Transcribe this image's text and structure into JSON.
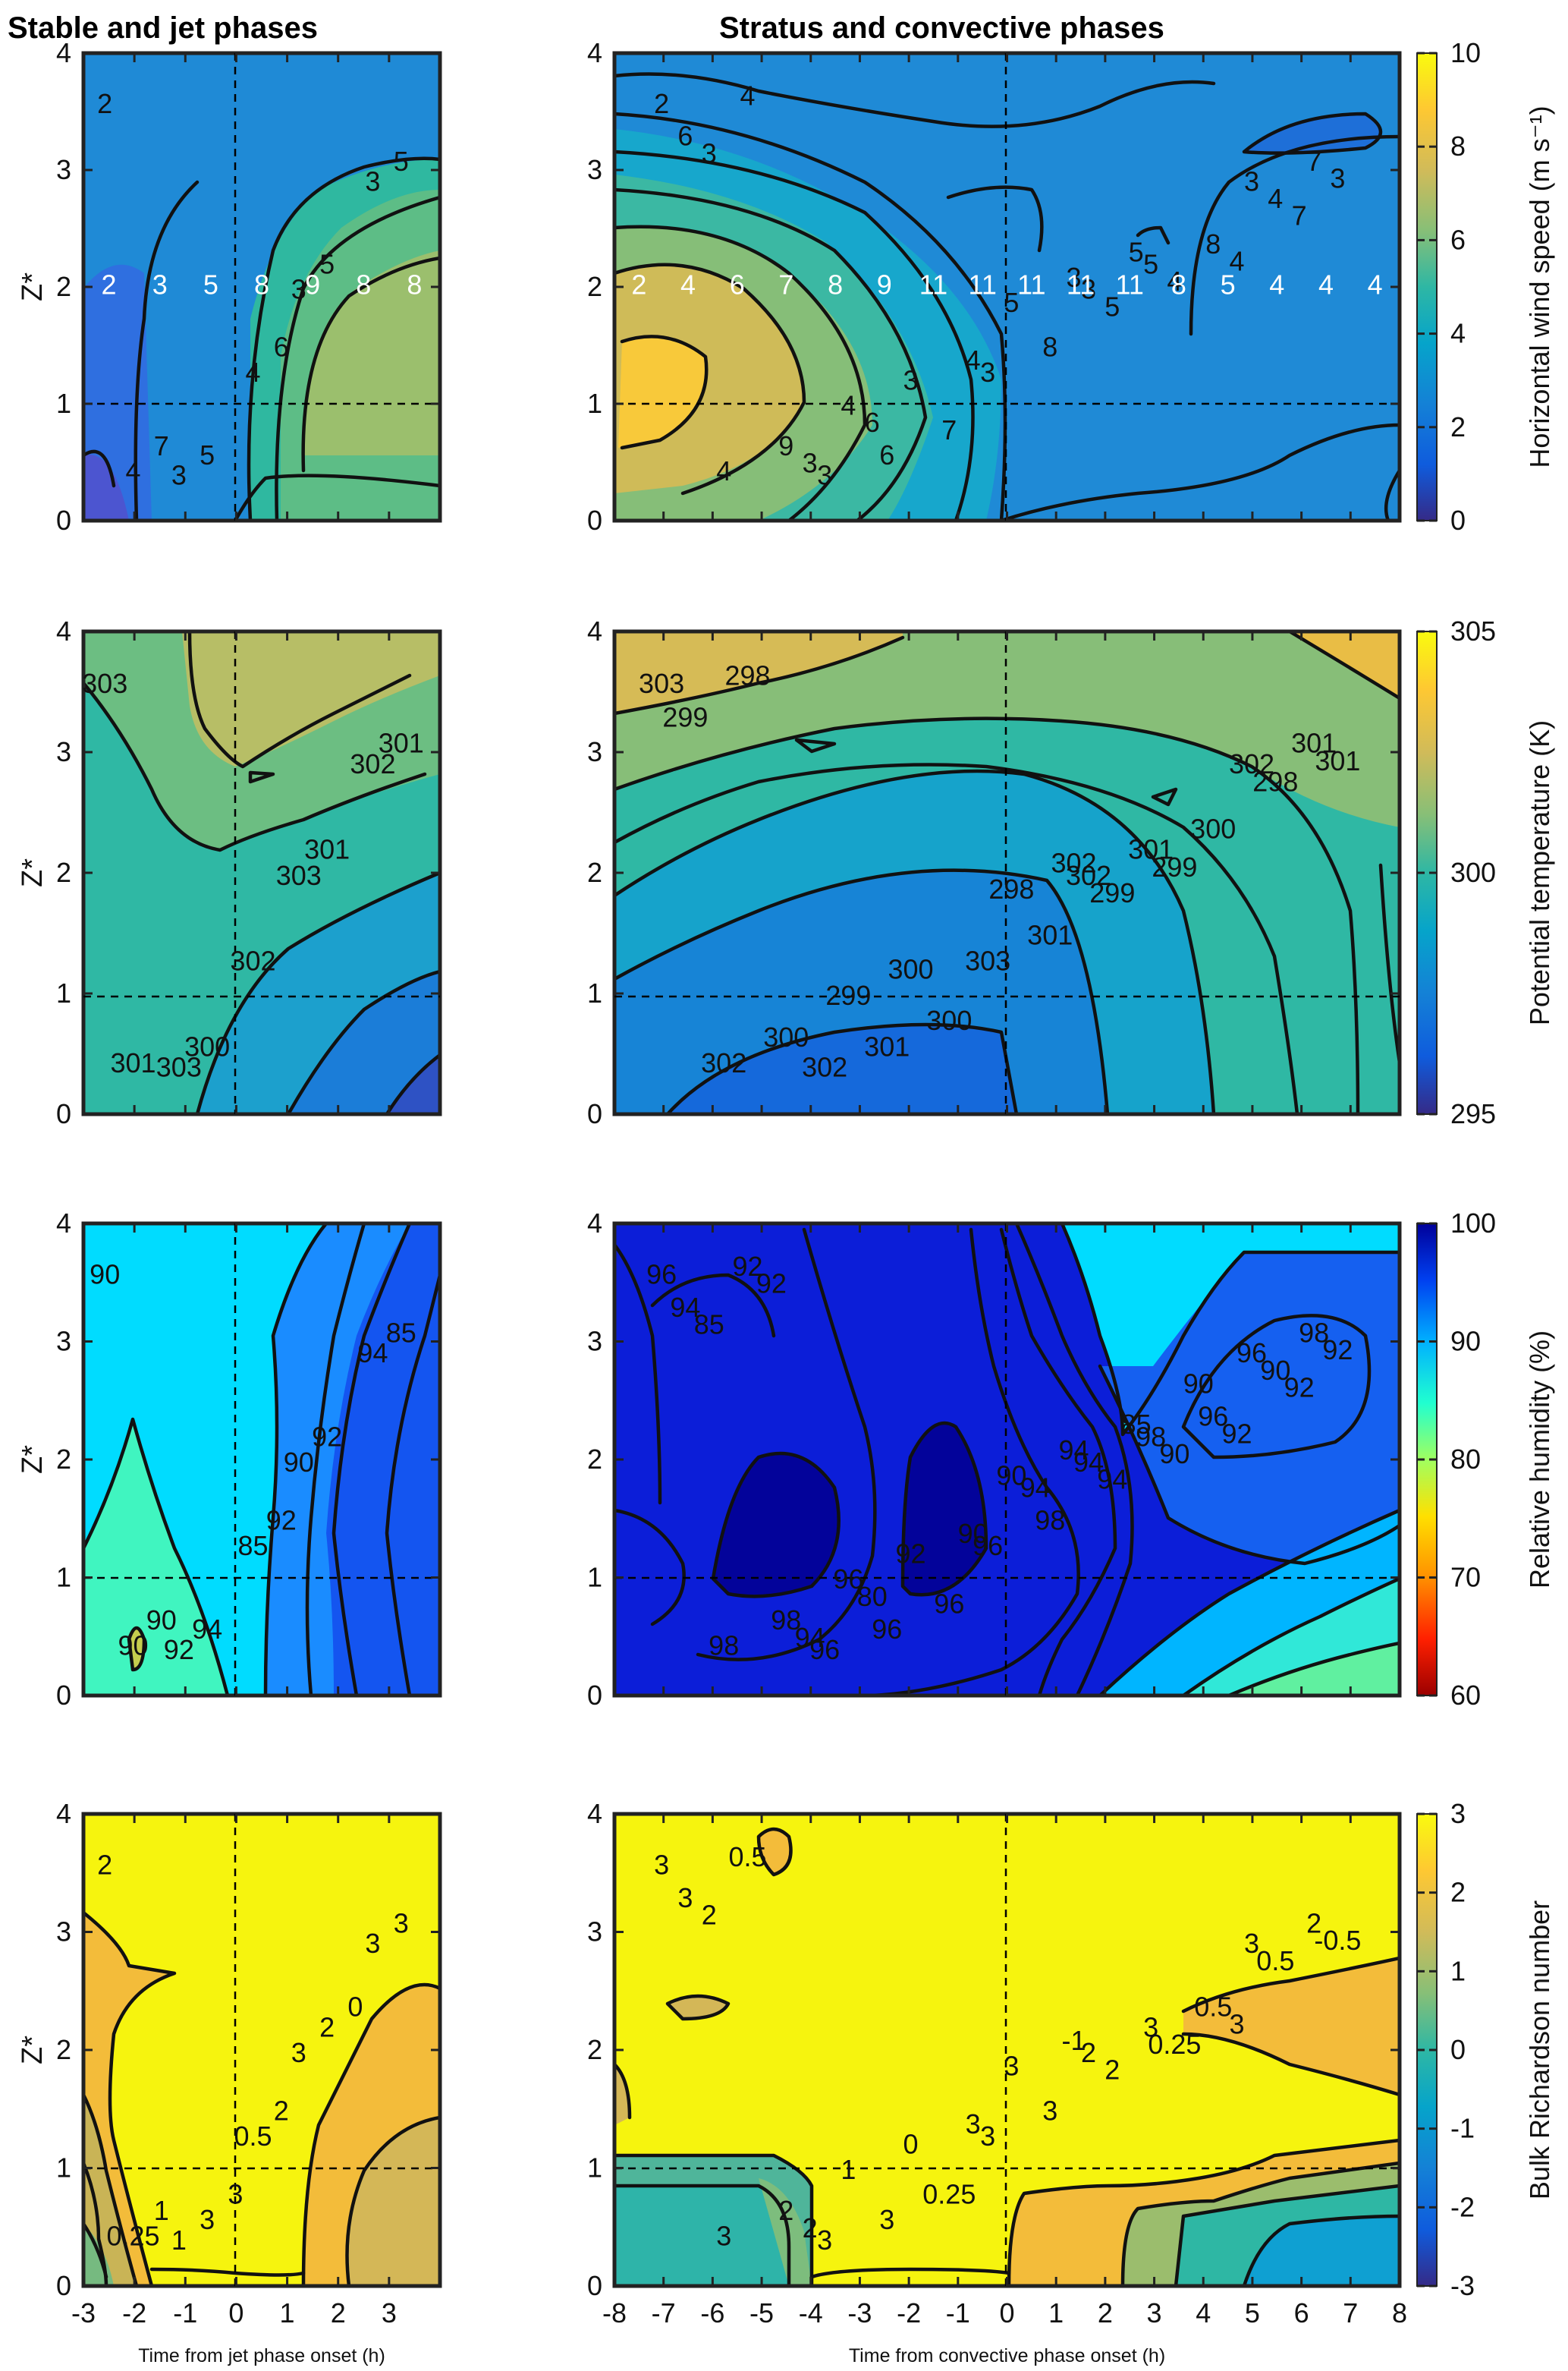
{
  "titles": {
    "left": "Stable and jet phases",
    "right": "Stratus and convective phases"
  },
  "y_axis_label": "Z*",
  "x_axis_labels": {
    "left": "Time from jet phase onset (h)",
    "right": "Time from convective phase onset (h)"
  },
  "chart_data": [
    {
      "type": "heatmap",
      "panel": "wind-left",
      "variable": "Horizontal wind speed",
      "x_range": [
        -3,
        4
      ],
      "y_range": [
        0,
        4
      ],
      "x_ticks": [
        "-3",
        "-2",
        "-1",
        "0",
        "1",
        "2",
        "3"
      ],
      "y_ticks": [
        "0",
        "1",
        "2",
        "3",
        "4"
      ],
      "contour_labels": [
        "2",
        "3",
        "3",
        "3",
        "4",
        "4",
        "5",
        "5",
        "5",
        "6",
        "7"
      ],
      "row_values_at_z2": [
        "2",
        "3",
        "5",
        "8",
        "9",
        "8",
        "8"
      ]
    },
    {
      "type": "heatmap",
      "panel": "wind-right",
      "variable": "Horizontal wind speed",
      "x_range": [
        -8,
        8
      ],
      "y_range": [
        0,
        4
      ],
      "x_ticks": [
        "-8",
        "-7",
        "-6",
        "-5",
        "-4",
        "-3",
        "-2",
        "-1",
        "0",
        "1",
        "2",
        "3",
        "4",
        "5",
        "6",
        "7",
        "8"
      ],
      "y_ticks": [
        "0",
        "1",
        "2",
        "3",
        "4"
      ],
      "contour_labels": [
        "2",
        "3",
        "3",
        "3",
        "3",
        "4",
        "5",
        "6",
        "7",
        "8",
        "9",
        "8",
        "7",
        "6",
        "5",
        "4",
        "4",
        "5",
        "4",
        "4",
        "3",
        "3",
        "3",
        "3",
        "4",
        "4",
        "3",
        "5",
        "6",
        "7"
      ],
      "row_values_at_z2": [
        "2",
        "4",
        "6",
        "7",
        "8",
        "9",
        "11",
        "11",
        "11",
        "11",
        "11",
        "8",
        "5",
        "4",
        "4",
        "4"
      ]
    },
    {
      "type": "heatmap",
      "panel": "theta-left",
      "variable": "Potential temperature",
      "x_range": [
        -3,
        4
      ],
      "y_range": [
        0,
        4
      ],
      "x_ticks": [
        "-3",
        "-2",
        "-1",
        "0",
        "1",
        "2",
        "3"
      ],
      "y_ticks": [
        "0",
        "1",
        "2",
        "3",
        "4"
      ],
      "contour_labels": [
        "303",
        "303",
        "303",
        "302",
        "302",
        "301",
        "301",
        "300",
        "301"
      ]
    },
    {
      "type": "heatmap",
      "panel": "theta-right",
      "variable": "Potential temperature",
      "x_range": [
        -8,
        8
      ],
      "y_range": [
        0,
        4
      ],
      "x_ticks": [
        "-8",
        "-7",
        "-6",
        "-5",
        "-4",
        "-3",
        "-2",
        "-1",
        "0",
        "1",
        "2",
        "3",
        "4",
        "5",
        "6",
        "7",
        "8"
      ],
      "y_ticks": [
        "0",
        "1",
        "2",
        "3",
        "4"
      ],
      "contour_labels": [
        "303",
        "302",
        "302",
        "302",
        "303",
        "302",
        "301",
        "301",
        "301",
        "301",
        "300",
        "300",
        "300",
        "299",
        "299",
        "299",
        "298",
        "298",
        "298",
        "299",
        "300",
        "301",
        "302"
      ]
    },
    {
      "type": "heatmap",
      "panel": "rh-left",
      "variable": "Relative humidity",
      "x_range": [
        -3,
        4
      ],
      "y_range": [
        0,
        4
      ],
      "x_ticks": [
        "-3",
        "-2",
        "-1",
        "0",
        "1",
        "2",
        "3"
      ],
      "y_ticks": [
        "0",
        "1",
        "2",
        "3",
        "4"
      ],
      "contour_labels": [
        "90",
        "90",
        "92",
        "94",
        "85",
        "90",
        "92",
        "94",
        "85",
        "92",
        "90"
      ]
    },
    {
      "type": "heatmap",
      "panel": "rh-right",
      "variable": "Relative humidity",
      "x_range": [
        -8,
        8
      ],
      "y_range": [
        0,
        4
      ],
      "x_ticks": [
        "-8",
        "-7",
        "-6",
        "-5",
        "-4",
        "-3",
        "-2",
        "-1",
        "0",
        "1",
        "2",
        "3",
        "4",
        "5",
        "6",
        "7",
        "8"
      ],
      "y_ticks": [
        "0",
        "1",
        "2",
        "3",
        "4"
      ],
      "contour_labels": [
        "96",
        "94",
        "96",
        "96",
        "96",
        "98",
        "98",
        "96",
        "98",
        "98",
        "98",
        "96",
        "96",
        "94",
        "94",
        "96",
        "90",
        "90",
        "92",
        "90",
        "92",
        "92",
        "94",
        "94",
        "92",
        "90",
        "85",
        "85",
        "80",
        "92",
        "94",
        "92",
        "90"
      ]
    },
    {
      "type": "heatmap",
      "panel": "ri-left",
      "variable": "Bulk Richardson number",
      "x_range": [
        -3,
        4
      ],
      "y_range": [
        0,
        4
      ],
      "x_ticks": [
        "-3",
        "-2",
        "-1",
        "0",
        "1",
        "2",
        "3"
      ],
      "y_ticks": [
        "0",
        "1",
        "2",
        "3",
        "4"
      ],
      "contour_labels": [
        "2",
        "3",
        "1",
        "3",
        "0.5",
        "0.25",
        "2",
        "3",
        "3",
        "2",
        "1",
        "0",
        "3"
      ]
    },
    {
      "type": "heatmap",
      "panel": "ri-right",
      "variable": "Bulk Richardson number",
      "x_range": [
        -8,
        8
      ],
      "y_range": [
        0,
        4
      ],
      "x_ticks": [
        "-8",
        "-7",
        "-6",
        "-5",
        "-4",
        "-3",
        "-2",
        "-1",
        "0",
        "1",
        "2",
        "3",
        "4",
        "5",
        "6",
        "7",
        "8"
      ],
      "y_ticks": [
        "0",
        "1",
        "2",
        "3",
        "4"
      ],
      "contour_labels": [
        "3",
        "2",
        "3",
        "3",
        "3",
        "3",
        "3",
        "3",
        "2",
        "3",
        "2",
        "0.5",
        "0.25",
        "3",
        "2",
        "1",
        "0.5",
        "3",
        "0.5",
        "0.25",
        "0",
        "-0.5",
        "-1",
        "2",
        "3",
        "3",
        "2"
      ]
    }
  ],
  "colorbars": [
    {
      "label": "Horizontal wind speed (m s⁻¹)",
      "ticks": [
        "0",
        "2",
        "4",
        "6",
        "8",
        "10"
      ],
      "colors": [
        "#352a87",
        "#0f5cdd",
        "#1481d6",
        "#06a4ca",
        "#2eb7a4",
        "#87bf77",
        "#d1bb59",
        "#fec832",
        "#f9fb0e"
      ]
    },
    {
      "label": "Potential temperature (K)",
      "ticks": [
        "295",
        "300",
        "305"
      ],
      "colors": [
        "#352a87",
        "#0f5cdd",
        "#1481d6",
        "#06a4ca",
        "#2eb7a4",
        "#87bf77",
        "#d1bb59",
        "#fec832",
        "#f9fb0e"
      ]
    },
    {
      "label": "Relative humidity (%)",
      "ticks": [
        "60",
        "70",
        "80",
        "90",
        "100"
      ],
      "colors": [
        "#b00000",
        "#ff4000",
        "#ffa000",
        "#ffff00",
        "#80ff80",
        "#00e0ff",
        "#0080ff",
        "#0010e0",
        "#00008f"
      ]
    },
    {
      "label": "Bulk Richardson number",
      "ticks": [
        "-3",
        "-2",
        "-1",
        "0",
        "1",
        "2",
        "3"
      ],
      "colors": [
        "#352a87",
        "#0f5cdd",
        "#1481d6",
        "#06a4ca",
        "#2eb7a4",
        "#87bf77",
        "#d1bb59",
        "#fec832",
        "#f9fb0e"
      ]
    }
  ]
}
